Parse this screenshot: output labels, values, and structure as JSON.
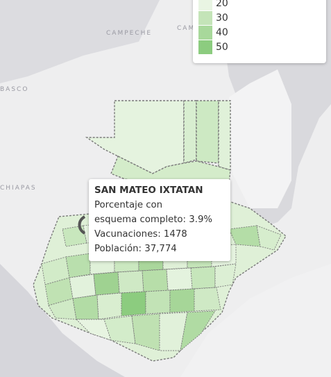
{
  "map": {
    "places": {
      "campeche": "CAMPECHE",
      "campeche_partial": "CAM",
      "tabasco_partial": "BASCO",
      "chiapas": "CHIAPAS"
    },
    "colors": {
      "land_outside": "#f2f2f2",
      "water": "#d9d9dd",
      "border": "#7a7a7a",
      "light": "#e3f2dc",
      "mid": "#c4e4b8",
      "dark": "#92cc84",
      "highlight": "#6bb366"
    }
  },
  "legend": {
    "items": [
      {
        "value": "20",
        "color": "#e9f5e3"
      },
      {
        "value": "30",
        "color": "#c4e4b8"
      },
      {
        "value": "40",
        "color": "#a8d89b"
      },
      {
        "value": "50",
        "color": "#8ccc7f"
      }
    ]
  },
  "tooltip": {
    "title": "SAN MATEO IXTATAN",
    "line1": "Porcentaje con",
    "line2": "esquema completo: 3.9%",
    "line3": "Vacunaciones: 1478",
    "line4": "Población: 37,774"
  }
}
